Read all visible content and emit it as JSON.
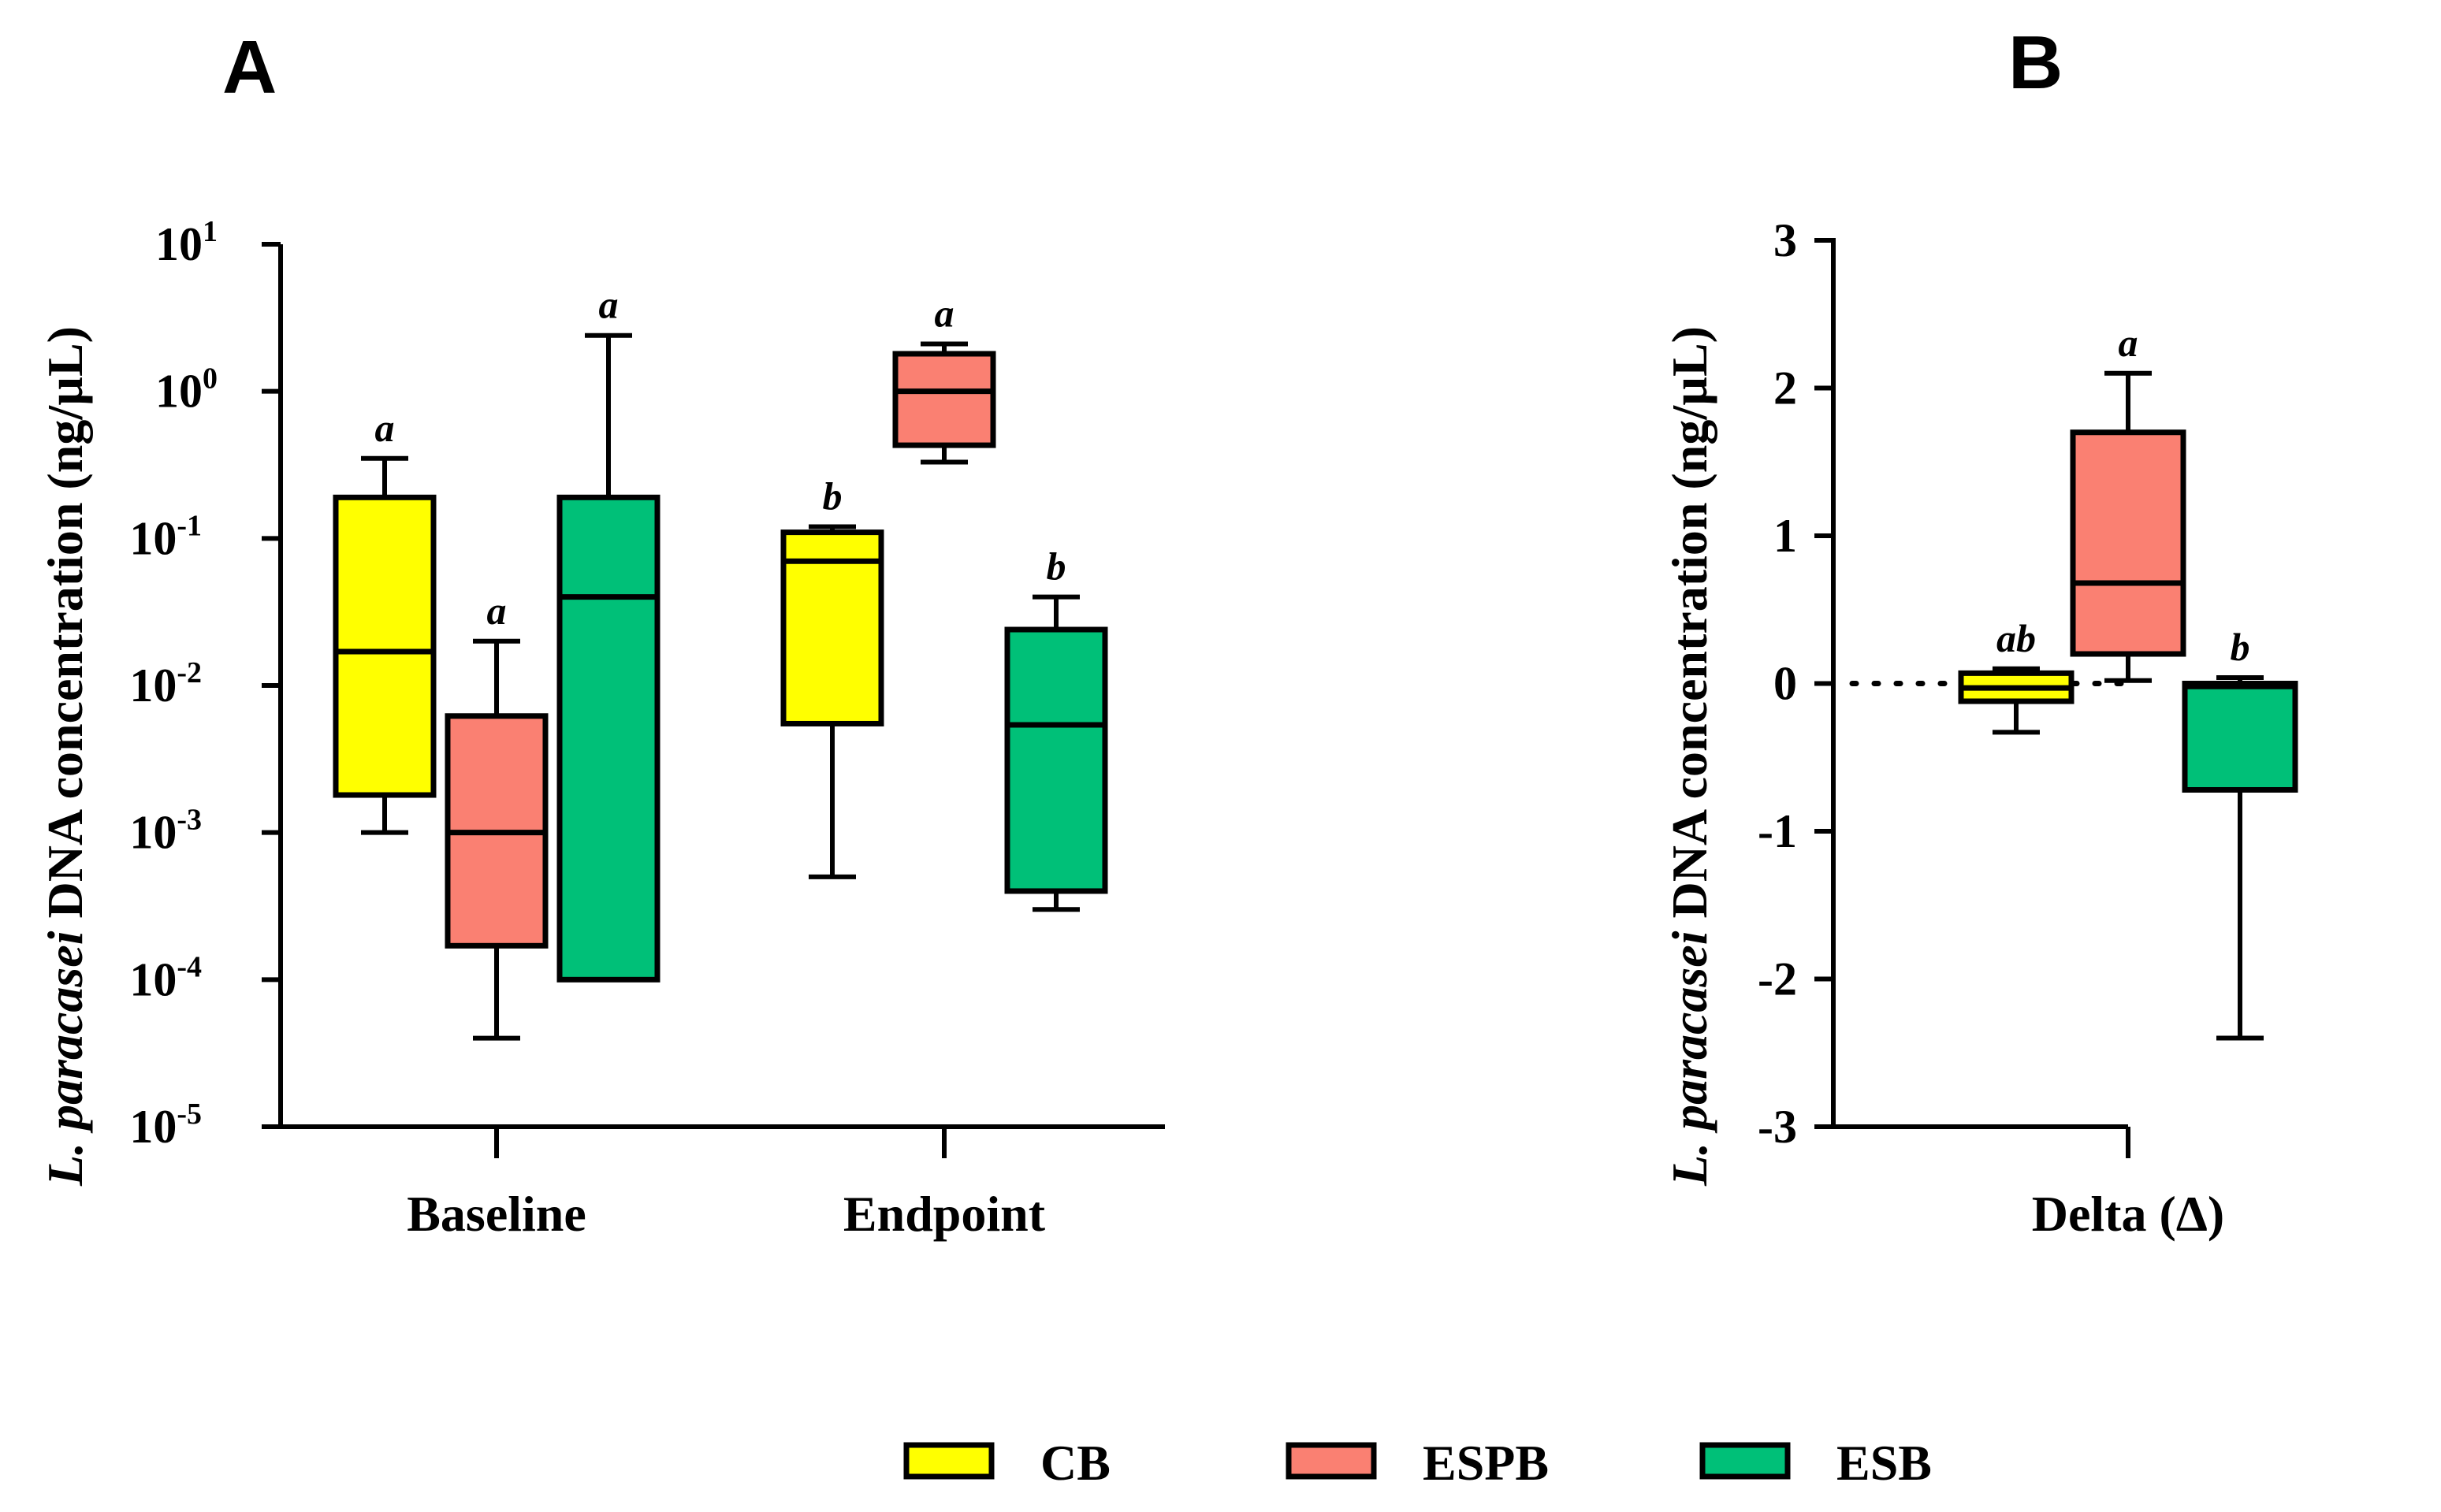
{
  "colors": {
    "CB": "#ffff00",
    "ESPB": "#fa8072",
    "ESB": "#00c078"
  },
  "legend": [
    {
      "key": "CB",
      "label": "CB"
    },
    {
      "key": "ESPB",
      "label": "ESPB"
    },
    {
      "key": "ESB",
      "label": "ESB"
    }
  ],
  "chart_data": [
    {
      "panel": "A",
      "type": "box",
      "ylabel_italic": "L. paracasei",
      "ylabel_rest": " DNA concentration (ng/µL)",
      "yscale": "log",
      "ylim_exp": [
        -5,
        1
      ],
      "yticks": [
        {
          "base": "10",
          "exp": "1"
        },
        {
          "base": "10",
          "exp": "0"
        },
        {
          "base": "10",
          "exp": "-1"
        },
        {
          "base": "10",
          "exp": "-2"
        },
        {
          "base": "10",
          "exp": "-3"
        },
        {
          "base": "10",
          "exp": "-4"
        },
        {
          "base": "10",
          "exp": "-5"
        }
      ],
      "categories": [
        "Baseline",
        "Endpoint"
      ],
      "groups": [
        {
          "category": "Baseline",
          "series": "CB",
          "min": 0.001,
          "q1": 0.0018,
          "median": 0.017,
          "q3": 0.19,
          "max": 0.35,
          "sig": "a"
        },
        {
          "category": "Baseline",
          "series": "ESPB",
          "min": 4e-05,
          "q1": 0.00017,
          "median": 0.001,
          "q3": 0.0062,
          "max": 0.02,
          "sig": "a"
        },
        {
          "category": "Baseline",
          "series": "ESB",
          "min": 0.0001,
          "q1": 0.0001,
          "median": 0.04,
          "q3": 0.19,
          "max": 2.4,
          "sig": "a"
        },
        {
          "category": "Endpoint",
          "series": "CB",
          "min": 0.0005,
          "q1": 0.0055,
          "median": 0.07,
          "q3": 0.11,
          "max": 0.12,
          "sig": "b"
        },
        {
          "category": "Endpoint",
          "series": "ESPB",
          "min": 0.33,
          "q1": 0.43,
          "median": 1.0,
          "q3": 1.8,
          "max": 2.1,
          "sig": "a"
        },
        {
          "category": "Endpoint",
          "series": "ESB",
          "min": 0.0003,
          "q1": 0.0004,
          "median": 0.0054,
          "q3": 0.024,
          "max": 0.04,
          "sig": "b"
        }
      ]
    },
    {
      "panel": "B",
      "type": "box",
      "ylabel_italic": "L. paracasei",
      "ylabel_rest": " DNA concentration (ng/µL)",
      "yscale": "linear",
      "ylim": [
        -3,
        3
      ],
      "yticks": [
        "3",
        "2",
        "1",
        "0",
        "-1",
        "-2",
        "-3"
      ],
      "categories": [
        "Delta (Δ)"
      ],
      "reference_line": 0,
      "groups": [
        {
          "category": "Delta (Δ)",
          "series": "CB",
          "min": -0.33,
          "q1": -0.12,
          "median": -0.03,
          "q3": 0.07,
          "max": 0.1,
          "sig": "ab"
        },
        {
          "category": "Delta (Δ)",
          "series": "ESPB",
          "min": 0.02,
          "q1": 0.2,
          "median": 0.68,
          "q3": 1.7,
          "max": 2.1,
          "sig": "a"
        },
        {
          "category": "Delta (Δ)",
          "series": "ESB",
          "min": -2.4,
          "q1": -0.72,
          "median": -0.02,
          "q3": 0.0,
          "max": 0.04,
          "sig": "b"
        }
      ]
    }
  ]
}
